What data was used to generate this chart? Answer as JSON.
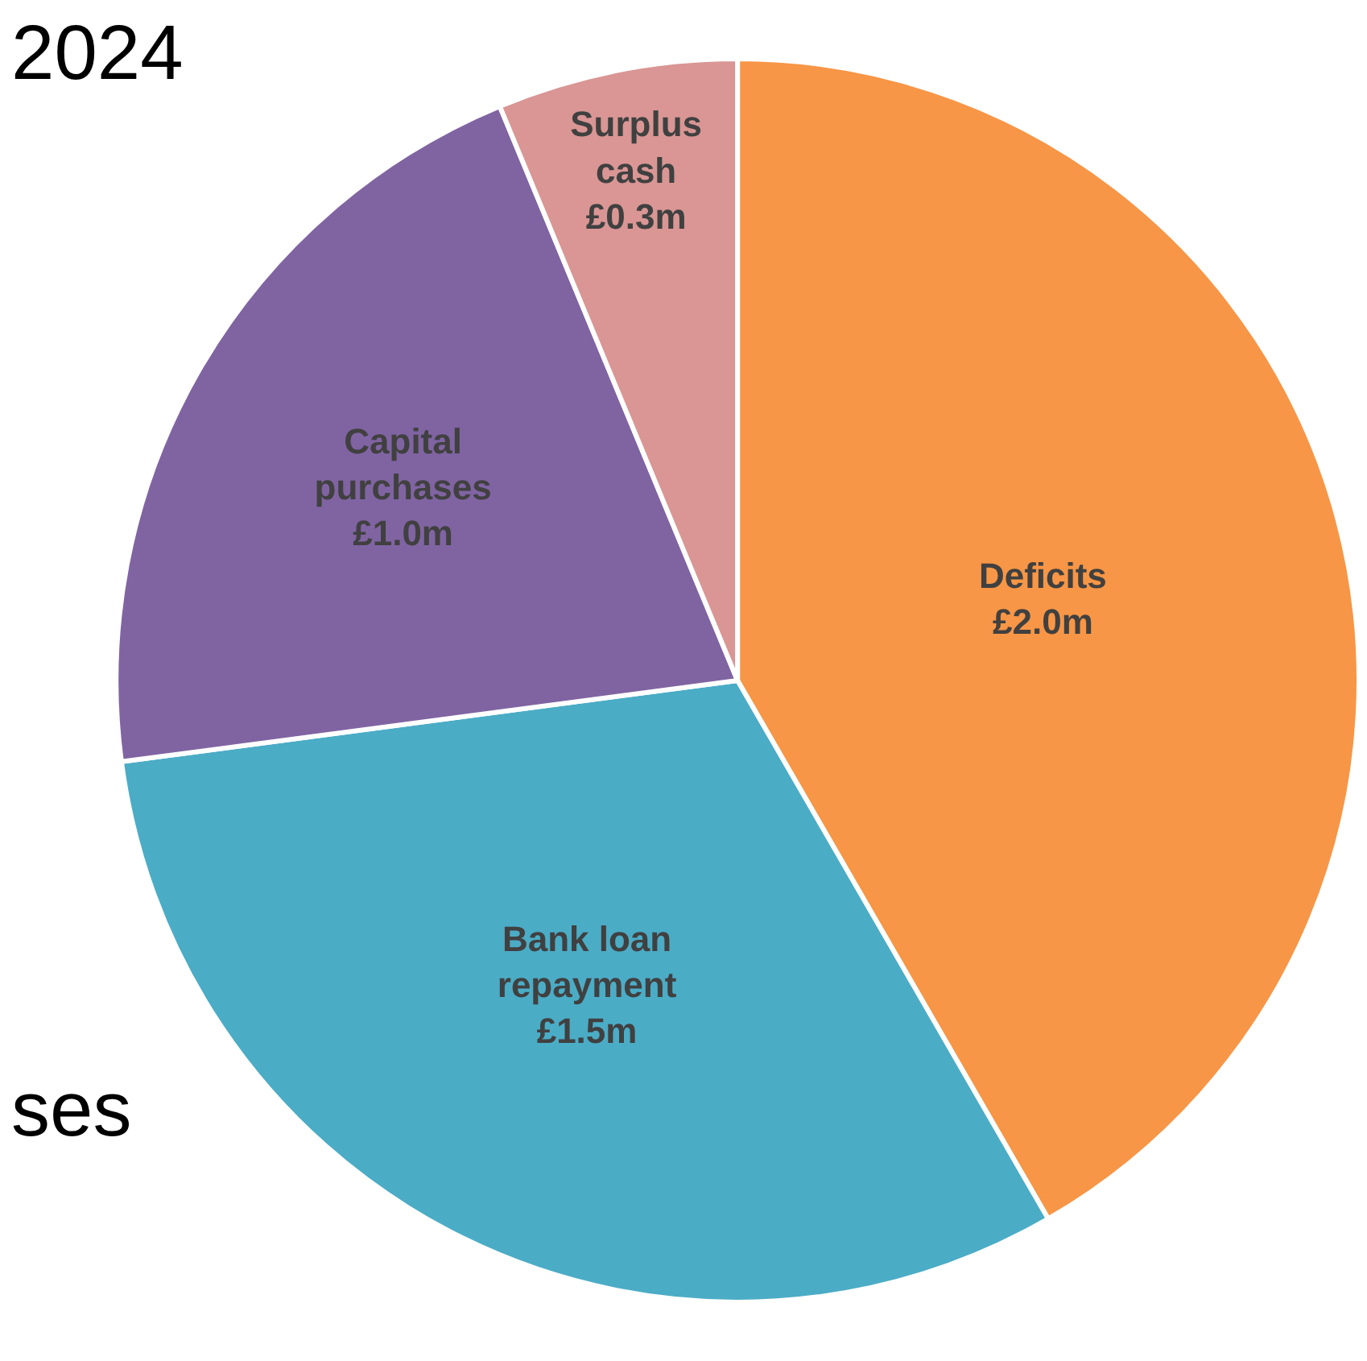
{
  "chart_data": {
    "type": "pie",
    "categories": [
      "Deficits",
      "Bank loan repayment",
      "Capital purchases",
      "Surplus cash"
    ],
    "values": [
      2.0,
      1.5,
      1.0,
      0.3
    ],
    "value_labels": [
      "£2.0m",
      "£1.5m",
      "£1.0m",
      "£0.3m"
    ],
    "colors": [
      "#f79646",
      "#4bacc6",
      "#8064a2",
      "#d99694"
    ],
    "annotations": [
      "2024",
      "ses"
    ],
    "legend": false
  }
}
